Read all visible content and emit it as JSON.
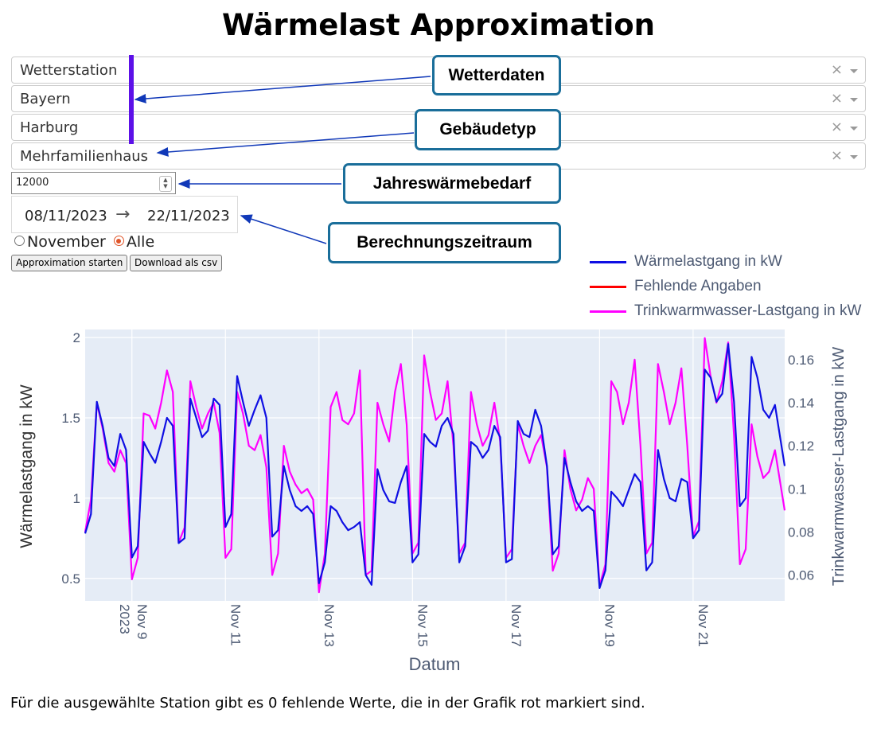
{
  "title": "Wärmelast Approximation",
  "dropdowns": [
    {
      "value": "Wetterstation"
    },
    {
      "value": "Bayern"
    },
    {
      "value": "Harburg"
    },
    {
      "value": "Mehrfamilienhaus"
    }
  ],
  "dropdown_clear_glyph": "×",
  "annual_demand_input": {
    "value": "12000"
  },
  "date_range": {
    "start": "08/11/2023",
    "arrow": "→",
    "end": "22/11/2023"
  },
  "radio": {
    "options": [
      "November",
      "Alle"
    ],
    "selected": "Alle"
  },
  "buttons": {
    "start": "Approximation starten",
    "download": "Download als csv"
  },
  "callouts": {
    "weather": "Wetterdaten",
    "building": "Gebäudetyp",
    "annual": "Jahreswärmebedarf",
    "period": "Berechnungszeitraum"
  },
  "colors": {
    "heat": "#0f0fe3",
    "missing": "#ff0000",
    "dhw": "#ff00ff",
    "plot_bg": "#e5ecf6",
    "callout_border": "#1a6e9a",
    "arrow": "#1038b8"
  },
  "chart_data": {
    "type": "line",
    "xlabel": "Datum",
    "ylabel": "Wärmelastgang in kW",
    "y2label": "Trinkwarmwasser-Lastgang in kW",
    "xlim": [
      "2023-11-08",
      "2023-11-22T23:00"
    ],
    "ylim": [
      0.36,
      2.05
    ],
    "y2lim": [
      0.048,
      0.174
    ],
    "x_ticks": [
      {
        "date": "2023-11-09",
        "label": "Nov 9",
        "sub": "2023"
      },
      {
        "date": "2023-11-11",
        "label": "Nov 11"
      },
      {
        "date": "2023-11-13",
        "label": "Nov 13"
      },
      {
        "date": "2023-11-15",
        "label": "Nov 15"
      },
      {
        "date": "2023-11-17",
        "label": "Nov 17"
      },
      {
        "date": "2023-11-19",
        "label": "Nov 19"
      },
      {
        "date": "2023-11-21",
        "label": "Nov 21"
      }
    ],
    "y_ticks": [
      {
        "v": 0.5,
        "label": "0.5"
      },
      {
        "v": 1,
        "label": "1"
      },
      {
        "v": 1.5,
        "label": "1.5"
      },
      {
        "v": 2,
        "label": "2"
      }
    ],
    "y2_ticks": [
      {
        "v": 0.06,
        "label": "0.06"
      },
      {
        "v": 0.08,
        "label": "0.08"
      },
      {
        "v": 0.1,
        "label": "0.1"
      },
      {
        "v": 0.12,
        "label": "0.12"
      },
      {
        "v": 0.14,
        "label": "0.14"
      },
      {
        "v": 0.16,
        "label": "0.16"
      }
    ],
    "grid": true,
    "legend_position": "top-right",
    "series": [
      {
        "name": "Wärmelastgang in kW",
        "axis": "y",
        "x": [
          "2023-11-08T00:00",
          "2023-11-08T03:00",
          "2023-11-08T06:00",
          "2023-11-08T09:00",
          "2023-11-08T12:00",
          "2023-11-08T15:00",
          "2023-11-08T18:00",
          "2023-11-08T21:00",
          "2023-11-09T00:00",
          "2023-11-09T03:00",
          "2023-11-09T06:00",
          "2023-11-09T09:00",
          "2023-11-09T12:00",
          "2023-11-09T15:00",
          "2023-11-09T18:00",
          "2023-11-09T21:00",
          "2023-11-10T00:00",
          "2023-11-10T03:00",
          "2023-11-10T06:00",
          "2023-11-10T09:00",
          "2023-11-10T12:00",
          "2023-11-10T15:00",
          "2023-11-10T18:00",
          "2023-11-10T21:00",
          "2023-11-11T00:00",
          "2023-11-11T03:00",
          "2023-11-11T06:00",
          "2023-11-11T09:00",
          "2023-11-11T12:00",
          "2023-11-11T15:00",
          "2023-11-11T18:00",
          "2023-11-11T21:00",
          "2023-11-12T00:00",
          "2023-11-12T03:00",
          "2023-11-12T06:00",
          "2023-11-12T09:00",
          "2023-11-12T12:00",
          "2023-11-12T15:00",
          "2023-11-12T18:00",
          "2023-11-12T21:00",
          "2023-11-13T00:00",
          "2023-11-13T03:00",
          "2023-11-13T06:00",
          "2023-11-13T09:00",
          "2023-11-13T12:00",
          "2023-11-13T15:00",
          "2023-11-13T18:00",
          "2023-11-13T21:00",
          "2023-11-14T00:00",
          "2023-11-14T03:00",
          "2023-11-14T06:00",
          "2023-11-14T09:00",
          "2023-11-14T12:00",
          "2023-11-14T15:00",
          "2023-11-14T18:00",
          "2023-11-14T21:00",
          "2023-11-15T00:00",
          "2023-11-15T03:00",
          "2023-11-15T06:00",
          "2023-11-15T09:00",
          "2023-11-15T12:00",
          "2023-11-15T15:00",
          "2023-11-15T18:00",
          "2023-11-15T21:00",
          "2023-11-16T00:00",
          "2023-11-16T03:00",
          "2023-11-16T06:00",
          "2023-11-16T09:00",
          "2023-11-16T12:00",
          "2023-11-16T15:00",
          "2023-11-16T18:00",
          "2023-11-16T21:00",
          "2023-11-17T00:00",
          "2023-11-17T03:00",
          "2023-11-17T06:00",
          "2023-11-17T09:00",
          "2023-11-17T12:00",
          "2023-11-17T15:00",
          "2023-11-17T18:00",
          "2023-11-17T21:00",
          "2023-11-18T00:00",
          "2023-11-18T03:00",
          "2023-11-18T06:00",
          "2023-11-18T09:00",
          "2023-11-18T12:00",
          "2023-11-18T15:00",
          "2023-11-18T18:00",
          "2023-11-18T21:00",
          "2023-11-19T00:00",
          "2023-11-19T03:00",
          "2023-11-19T06:00",
          "2023-11-19T09:00",
          "2023-11-19T12:00",
          "2023-11-19T15:00",
          "2023-11-19T18:00",
          "2023-11-19T21:00",
          "2023-11-20T00:00",
          "2023-11-20T03:00",
          "2023-11-20T06:00",
          "2023-11-20T09:00",
          "2023-11-20T12:00",
          "2023-11-20T15:00",
          "2023-11-20T18:00",
          "2023-11-20T21:00",
          "2023-11-21T00:00",
          "2023-11-21T03:00",
          "2023-11-21T06:00",
          "2023-11-21T09:00",
          "2023-11-21T12:00",
          "2023-11-21T15:00",
          "2023-11-21T18:00",
          "2023-11-21T21:00",
          "2023-11-22T00:00",
          "2023-11-22T03:00",
          "2023-11-22T06:00",
          "2023-11-22T09:00",
          "2023-11-22T12:00",
          "2023-11-22T15:00",
          "2023-11-22T18:00",
          "2023-11-22T23:00"
        ],
        "values": [
          0.78,
          0.9,
          1.6,
          1.45,
          1.25,
          1.2,
          1.4,
          1.3,
          0.63,
          0.7,
          1.35,
          1.28,
          1.22,
          1.35,
          1.5,
          1.45,
          0.72,
          0.75,
          1.62,
          1.5,
          1.38,
          1.42,
          1.62,
          1.58,
          0.82,
          0.9,
          1.76,
          1.6,
          1.45,
          1.55,
          1.64,
          1.5,
          0.76,
          0.8,
          1.2,
          1.05,
          0.95,
          0.92,
          0.95,
          0.9,
          0.47,
          0.6,
          0.95,
          0.92,
          0.85,
          0.8,
          0.82,
          0.85,
          0.52,
          0.46,
          1.18,
          1.05,
          0.98,
          0.97,
          1.1,
          1.2,
          0.6,
          0.65,
          1.4,
          1.35,
          1.32,
          1.45,
          1.5,
          1.4,
          0.6,
          0.7,
          1.35,
          1.32,
          1.25,
          1.3,
          1.45,
          1.38,
          0.6,
          0.62,
          1.48,
          1.4,
          1.38,
          1.55,
          1.45,
          1.2,
          0.65,
          0.7,
          1.25,
          1.1,
          0.98,
          0.92,
          0.95,
          0.92,
          0.44,
          0.55,
          1.04,
          1.0,
          0.95,
          1.05,
          1.15,
          1.1,
          0.55,
          0.6,
          1.3,
          1.12,
          1.0,
          0.98,
          1.12,
          1.1,
          0.75,
          0.8,
          1.8,
          1.75,
          1.6,
          1.65,
          1.96,
          1.6,
          0.95,
          1.0,
          1.88,
          1.75,
          1.55,
          1.5,
          1.58,
          1.2
        ]
      },
      {
        "name": "Fehlende Angaben",
        "axis": "y",
        "x": [],
        "values": []
      },
      {
        "name": "Trinkwarmwasser-Lastgang in kW",
        "axis": "y2",
        "x": [
          "2023-11-08T00:00",
          "2023-11-08T03:00",
          "2023-11-08T06:00",
          "2023-11-08T09:00",
          "2023-11-08T12:00",
          "2023-11-08T15:00",
          "2023-11-08T18:00",
          "2023-11-08T21:00",
          "2023-11-09T00:00",
          "2023-11-09T03:00",
          "2023-11-09T06:00",
          "2023-11-09T09:00",
          "2023-11-09T12:00",
          "2023-11-09T15:00",
          "2023-11-09T18:00",
          "2023-11-09T21:00",
          "2023-11-10T00:00",
          "2023-11-10T03:00",
          "2023-11-10T06:00",
          "2023-11-10T09:00",
          "2023-11-10T12:00",
          "2023-11-10T15:00",
          "2023-11-10T18:00",
          "2023-11-10T21:00",
          "2023-11-11T00:00",
          "2023-11-11T03:00",
          "2023-11-11T06:00",
          "2023-11-11T09:00",
          "2023-11-11T12:00",
          "2023-11-11T15:00",
          "2023-11-11T18:00",
          "2023-11-11T21:00",
          "2023-11-12T00:00",
          "2023-11-12T03:00",
          "2023-11-12T06:00",
          "2023-11-12T09:00",
          "2023-11-12T12:00",
          "2023-11-12T15:00",
          "2023-11-12T18:00",
          "2023-11-12T21:00",
          "2023-11-13T00:00",
          "2023-11-13T03:00",
          "2023-11-13T06:00",
          "2023-11-13T09:00",
          "2023-11-13T12:00",
          "2023-11-13T15:00",
          "2023-11-13T18:00",
          "2023-11-13T21:00",
          "2023-11-14T00:00",
          "2023-11-14T03:00",
          "2023-11-14T06:00",
          "2023-11-14T09:00",
          "2023-11-14T12:00",
          "2023-11-14T15:00",
          "2023-11-14T18:00",
          "2023-11-14T21:00",
          "2023-11-15T00:00",
          "2023-11-15T03:00",
          "2023-11-15T06:00",
          "2023-11-15T09:00",
          "2023-11-15T12:00",
          "2023-11-15T15:00",
          "2023-11-15T18:00",
          "2023-11-15T21:00",
          "2023-11-16T00:00",
          "2023-11-16T03:00",
          "2023-11-16T06:00",
          "2023-11-16T09:00",
          "2023-11-16T12:00",
          "2023-11-16T15:00",
          "2023-11-16T18:00",
          "2023-11-16T21:00",
          "2023-11-17T00:00",
          "2023-11-17T03:00",
          "2023-11-17T06:00",
          "2023-11-17T09:00",
          "2023-11-17T12:00",
          "2023-11-17T15:00",
          "2023-11-17T18:00",
          "2023-11-17T21:00",
          "2023-11-18T00:00",
          "2023-11-18T03:00",
          "2023-11-18T06:00",
          "2023-11-18T09:00",
          "2023-11-18T12:00",
          "2023-11-18T15:00",
          "2023-11-18T18:00",
          "2023-11-18T21:00",
          "2023-11-19T00:00",
          "2023-11-19T03:00",
          "2023-11-19T06:00",
          "2023-11-19T09:00",
          "2023-11-19T12:00",
          "2023-11-19T15:00",
          "2023-11-19T18:00",
          "2023-11-19T21:00",
          "2023-11-20T00:00",
          "2023-11-20T03:00",
          "2023-11-20T06:00",
          "2023-11-20T09:00",
          "2023-11-20T12:00",
          "2023-11-20T15:00",
          "2023-11-20T18:00",
          "2023-11-20T21:00",
          "2023-11-21T00:00",
          "2023-11-21T03:00",
          "2023-11-21T06:00",
          "2023-11-21T09:00",
          "2023-11-21T12:00",
          "2023-11-21T15:00",
          "2023-11-21T18:00",
          "2023-11-21T21:00",
          "2023-11-22T00:00",
          "2023-11-22T03:00",
          "2023-11-22T06:00",
          "2023-11-22T09:00",
          "2023-11-22T12:00",
          "2023-11-22T15:00",
          "2023-11-22T18:00",
          "2023-11-22T23:00"
        ],
        "values": [
          0.08,
          0.095,
          0.14,
          0.128,
          0.112,
          0.108,
          0.118,
          0.112,
          0.058,
          0.068,
          0.135,
          0.134,
          0.128,
          0.14,
          0.155,
          0.145,
          0.075,
          0.082,
          0.15,
          0.138,
          0.128,
          0.135,
          0.14,
          0.126,
          0.068,
          0.072,
          0.145,
          0.135,
          0.12,
          0.118,
          0.125,
          0.11,
          0.06,
          0.07,
          0.12,
          0.108,
          0.102,
          0.098,
          0.1,
          0.095,
          0.052,
          0.07,
          0.138,
          0.145,
          0.132,
          0.13,
          0.135,
          0.155,
          0.06,
          0.062,
          0.14,
          0.13,
          0.122,
          0.145,
          0.158,
          0.13,
          0.07,
          0.075,
          0.162,
          0.145,
          0.132,
          0.135,
          0.15,
          0.12,
          0.07,
          0.075,
          0.145,
          0.13,
          0.12,
          0.125,
          0.14,
          0.122,
          0.068,
          0.072,
          0.13,
          0.12,
          0.112,
          0.12,
          0.125,
          0.11,
          0.062,
          0.07,
          0.118,
          0.1,
          0.09,
          0.095,
          0.105,
          0.1,
          0.055,
          0.065,
          0.15,
          0.145,
          0.13,
          0.14,
          0.16,
          0.12,
          0.07,
          0.075,
          0.158,
          0.145,
          0.13,
          0.14,
          0.156,
          0.12,
          0.078,
          0.085,
          0.17,
          0.152,
          0.14,
          0.15,
          0.168,
          0.125,
          0.065,
          0.072,
          0.13,
          0.115,
          0.105,
          0.108,
          0.118,
          0.09
        ]
      }
    ]
  },
  "footer": "Für die ausgewählte Station gibt es 0 fehlende Werte, die in der Grafik rot markiert sind."
}
